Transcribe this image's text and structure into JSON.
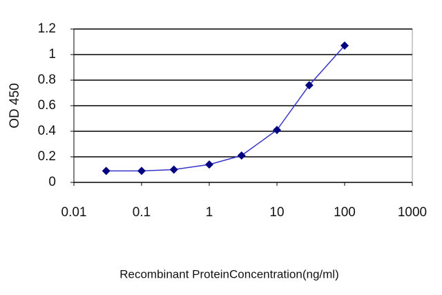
{
  "chart_data": {
    "type": "line",
    "x_label": "Recombinant ProteinConcentration(ng/ml)",
    "y_label": "OD 450",
    "x": [
      0.03,
      0.1,
      0.3,
      1,
      3,
      10,
      30,
      100
    ],
    "values": [
      0.09,
      0.09,
      0.1,
      0.14,
      0.21,
      0.41,
      0.76,
      1.07
    ],
    "color": "#3333cc",
    "marker_color": "#000080",
    "xscale": "log",
    "xlim": [
      0.01,
      1000
    ],
    "xticks": [
      0.01,
      0.1,
      1,
      10,
      100,
      1000
    ],
    "ylim": [
      0,
      1.2
    ],
    "yticks": [
      0,
      0.2,
      0.4,
      0.6,
      0.8,
      1,
      1.2
    ],
    "grid": true
  }
}
